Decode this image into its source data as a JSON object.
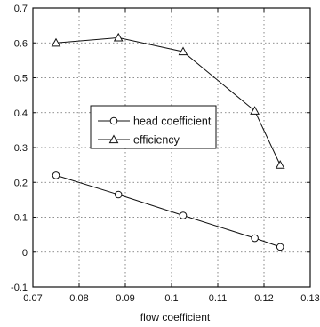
{
  "chart_data": {
    "type": "line",
    "title": "",
    "xlabel": "flow coefficient",
    "ylabel": "",
    "xlim": [
      0.07,
      0.13
    ],
    "ylim": [
      -0.1,
      0.7
    ],
    "xticks": [
      0.07,
      0.08,
      0.09,
      0.1,
      0.11,
      0.12,
      0.13
    ],
    "yticks": [
      -0.1,
      0,
      0.1,
      0.2,
      0.3,
      0.4,
      0.5,
      0.6,
      0.7
    ],
    "xtick_labels": [
      "0.07",
      "0.08",
      "0.09",
      "0.1",
      "0.11",
      "0.12",
      "0.13"
    ],
    "ytick_labels": [
      "-0.1",
      "0",
      "0.1",
      "0.2",
      "0.3",
      "0.4",
      "0.5",
      "0.6",
      "0.7"
    ],
    "grid": true,
    "legend_position": "center-left",
    "series": [
      {
        "name": "head coefficient",
        "marker": "circle",
        "x": [
          0.075,
          0.0885,
          0.1025,
          0.118,
          0.1235
        ],
        "y": [
          0.22,
          0.165,
          0.105,
          0.04,
          0.015
        ]
      },
      {
        "name": "efficiency",
        "marker": "triangle",
        "x": [
          0.075,
          0.0885,
          0.1025,
          0.118,
          0.1235
        ],
        "y": [
          0.6,
          0.615,
          0.575,
          0.405,
          0.25
        ]
      }
    ]
  }
}
